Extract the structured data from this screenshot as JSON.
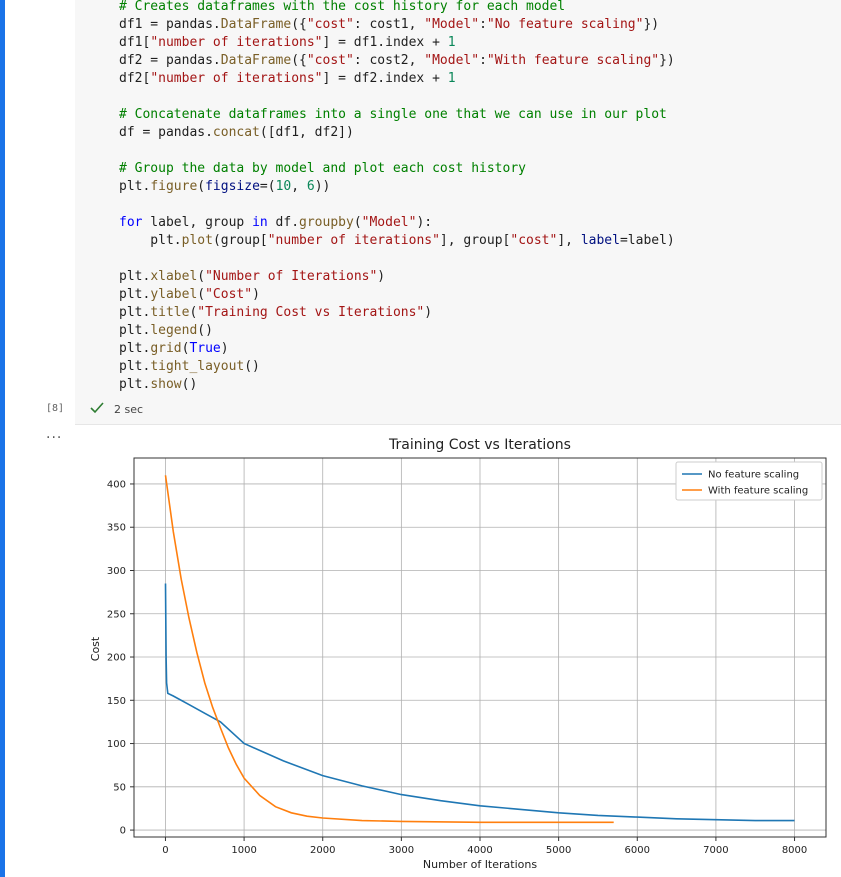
{
  "code_lines": [
    "# Creates dataframes with the cost history for each model",
    "df1 = pandas.DataFrame({\"cost\": cost1, \"Model\":\"No feature scaling\"})",
    "df1[\"number of iterations\"] = df1.index + 1",
    "df2 = pandas.DataFrame({\"cost\": cost2, \"Model\":\"With feature scaling\"})",
    "df2[\"number of iterations\"] = df2.index + 1",
    "",
    "# Concatenate dataframes into a single one that we can use in our plot",
    "df = pandas.concat([df1, df2])",
    "",
    "# Group the data by model and plot each cost history",
    "plt.figure(figsize=(10, 6))",
    "",
    "for label, group in df.groupby(\"Model\"):",
    "    plt.plot(group[\"number of iterations\"], group[\"cost\"], label=label)",
    "",
    "plt.xlabel(\"Number of Iterations\")",
    "plt.ylabel(\"Cost\")",
    "plt.title(\"Training Cost vs Iterations\")",
    "plt.legend()",
    "plt.grid(True)",
    "plt.tight_layout()",
    "plt.show()"
  ],
  "cell": {
    "execution_count": "[8]",
    "duration": "2 sec",
    "output_menu": "..."
  },
  "colors": {
    "blue": "#1f77b4",
    "orange": "#ff7f0e",
    "accent": "#1a73e8"
  },
  "chart_data": {
    "type": "line",
    "title": "Training Cost vs Iterations",
    "xlabel": "Number of Iterations",
    "ylabel": "Cost",
    "xlim": [
      -400,
      8400
    ],
    "ylim": [
      -8,
      430
    ],
    "xticks": [
      0,
      1000,
      2000,
      3000,
      4000,
      5000,
      6000,
      7000,
      8000
    ],
    "yticks": [
      0,
      50,
      100,
      150,
      200,
      250,
      300,
      350,
      400
    ],
    "grid": true,
    "legend_position": "top-right",
    "series": [
      {
        "name": "No feature scaling",
        "color": "#1f77b4",
        "points": [
          [
            1,
            285
          ],
          [
            8,
            200
          ],
          [
            15,
            170
          ],
          [
            30,
            158
          ],
          [
            100,
            155
          ],
          [
            300,
            145
          ],
          [
            500,
            135
          ],
          [
            700,
            125
          ],
          [
            1000,
            100
          ],
          [
            1500,
            80
          ],
          [
            2000,
            63
          ],
          [
            2500,
            51
          ],
          [
            3000,
            41
          ],
          [
            3500,
            34
          ],
          [
            4000,
            28
          ],
          [
            4500,
            24
          ],
          [
            5000,
            20
          ],
          [
            5500,
            17
          ],
          [
            6000,
            15
          ],
          [
            6500,
            13
          ],
          [
            7000,
            12
          ],
          [
            7500,
            11
          ],
          [
            8000,
            11
          ]
        ]
      },
      {
        "name": "With feature scaling",
        "color": "#ff7f0e",
        "points": [
          [
            1,
            410
          ],
          [
            100,
            345
          ],
          [
            200,
            290
          ],
          [
            300,
            245
          ],
          [
            400,
            205
          ],
          [
            500,
            170
          ],
          [
            600,
            142
          ],
          [
            700,
            118
          ],
          [
            800,
            95
          ],
          [
            900,
            76
          ],
          [
            1000,
            60
          ],
          [
            1200,
            40
          ],
          [
            1400,
            27
          ],
          [
            1600,
            20
          ],
          [
            1800,
            16
          ],
          [
            2000,
            14
          ],
          [
            2500,
            11
          ],
          [
            3000,
            10
          ],
          [
            4000,
            9
          ],
          [
            5000,
            9
          ],
          [
            5700,
            9
          ]
        ]
      }
    ]
  }
}
